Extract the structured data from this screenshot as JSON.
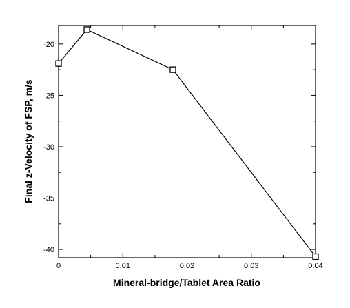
{
  "chart_data": {
    "type": "line",
    "title": "",
    "xlabel": "Mineral-bridge/Tablet Area Ratio",
    "ylabel": "Final z-Velocity of FSP, m/s",
    "xlim": [
      0,
      0.04
    ],
    "ylim": [
      -40.8,
      -18.2
    ],
    "x_ticks": [
      0,
      0.01,
      0.02,
      0.03,
      0.04
    ],
    "x_tick_labels": [
      "0",
      "0.01",
      "0.02",
      "0.03",
      "0.04"
    ],
    "y_ticks": [
      -20,
      -25,
      -30,
      -35,
      -40
    ],
    "y_tick_labels": [
      "-20",
      "-25",
      "-30",
      "-35",
      "-40"
    ],
    "grid": false,
    "marker": "open-square",
    "series": [
      {
        "x": [
          0,
          0.0044,
          0.0178,
          0.04
        ],
        "y": [
          -21.9,
          -18.6,
          -22.5,
          -40.7
        ]
      }
    ]
  }
}
